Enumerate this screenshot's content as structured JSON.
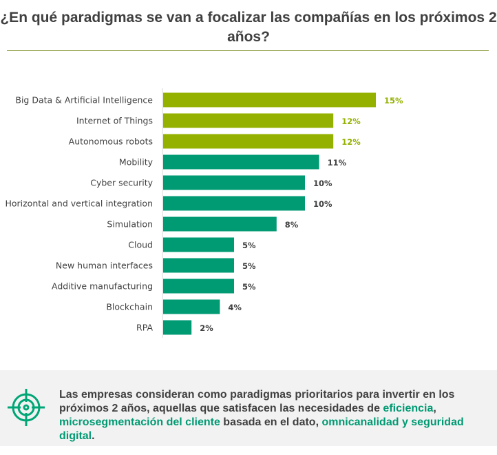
{
  "title": "¿En qué paradigmas se van a focalizar las compañías  en los próximos 2 años?",
  "colors": {
    "highlight": "#95b100",
    "default": "#009a73",
    "label": "#404040"
  },
  "chart_data": {
    "type": "bar",
    "orientation": "horizontal",
    "categories": [
      "Big Data & Artificial Intelligence",
      "Internet of Things",
      "Autonomous robots",
      "Mobility",
      "Cyber security",
      "Horizontal  and vertical integration",
      "Simulation",
      "Cloud",
      "New human interfaces",
      "Additive manufacturing",
      "Blockchain",
      "RPA"
    ],
    "values": [
      15,
      12,
      12,
      11,
      10,
      10,
      8,
      5,
      5,
      5,
      4,
      2
    ],
    "data_labels": [
      "15%",
      "12%",
      "12%",
      "11%",
      "10%",
      "10%",
      "8%",
      "5%",
      "5%",
      "5%",
      "4%",
      "2%"
    ],
    "highlighted": [
      true,
      true,
      true,
      false,
      false,
      false,
      false,
      false,
      false,
      false,
      false,
      false
    ],
    "unit": "%",
    "grid": false
  },
  "note": {
    "icon": "target-icon",
    "parts": [
      {
        "text": "Las empresas consideran como paradigmas prioritarios para invertir en los próximos 2 años, aquellas que satisfacen las necesidades de ",
        "hl": false
      },
      {
        "text": "eficiencia",
        "hl": true
      },
      {
        "text": ", ",
        "hl": false
      },
      {
        "text": "microsegmentación del cliente",
        "hl": true
      },
      {
        "text": " basada en el dato, ",
        "hl": false
      },
      {
        "text": "omnicanalidad  y seguridad digital",
        "hl": true
      },
      {
        "text": ".",
        "hl": false
      }
    ]
  }
}
